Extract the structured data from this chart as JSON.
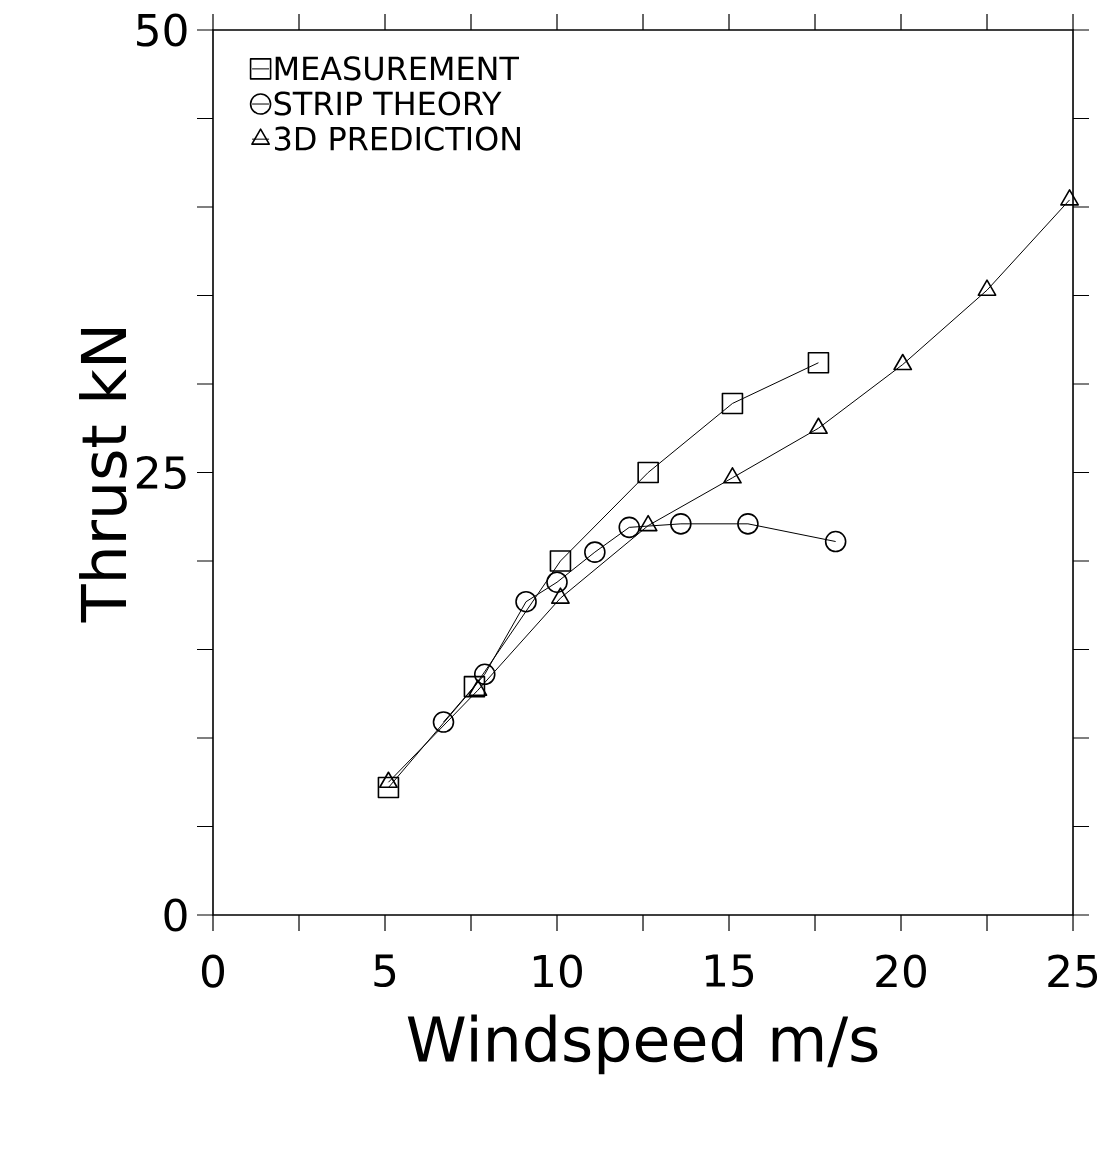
{
  "chart_data": {
    "type": "line",
    "xlabel": "Windspeed m/s",
    "ylabel": "Thrust kN",
    "xlim": [
      0,
      25
    ],
    "ylim": [
      0,
      50
    ],
    "xticks": [
      0,
      {
        "value": 2.5,
        "label": null
      },
      5,
      {
        "value": 7.5,
        "label": null
      },
      10,
      {
        "value": 12.5,
        "label": null
      },
      15,
      {
        "value": 17.5,
        "label": null
      },
      20,
      {
        "value": 22.5,
        "label": null
      },
      25
    ],
    "yticks": [
      0,
      {
        "value": 5,
        "label": null
      },
      {
        "value": 10,
        "label": null
      },
      {
        "value": 15,
        "label": null
      },
      {
        "value": 20,
        "label": null
      },
      25,
      {
        "value": 30,
        "label": null
      },
      {
        "value": 35,
        "label": null
      },
      {
        "value": 40,
        "label": null
      },
      {
        "value": 45,
        "label": null
      },
      50
    ],
    "legend": "top left",
    "grid": false,
    "line_style": "solid",
    "series": [
      {
        "name": "MEASUREMENT",
        "color": "#000000",
        "marker": "square",
        "x": [
          5.1,
          7.6,
          10.1,
          12.65,
          15.1,
          17.6
        ],
        "values": [
          7.2,
          12.9,
          20.0,
          25.0,
          28.9,
          31.2
        ]
      },
      {
        "name": "STRIP THEORY",
        "color": "#000000",
        "marker": "circle",
        "x": [
          6.7,
          7.9,
          9.1,
          10.0,
          11.1,
          12.1,
          13.6,
          15.55,
          18.1
        ],
        "values": [
          10.9,
          13.6,
          17.7,
          18.8,
          20.5,
          21.9,
          22.1,
          22.1,
          21.1
        ]
      },
      {
        "name": "3D PREDICTION",
        "color": "#000000",
        "marker": "triangle",
        "x": [
          5.1,
          7.7,
          10.1,
          12.65,
          15.1,
          17.6,
          20.05,
          22.5,
          24.9
        ],
        "values": [
          7.5,
          12.7,
          17.9,
          22.0,
          24.7,
          27.5,
          31.1,
          35.3,
          40.4
        ]
      }
    ]
  }
}
